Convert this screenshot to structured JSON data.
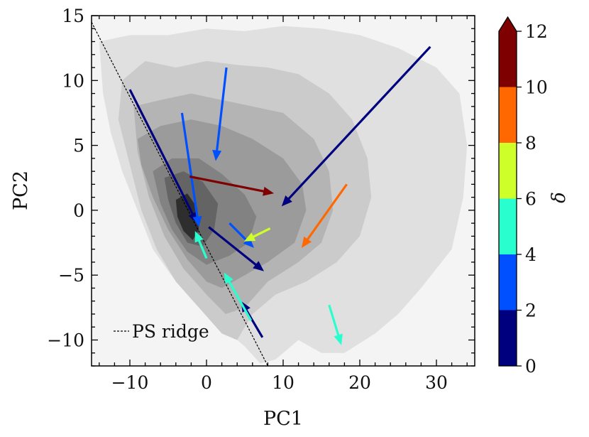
{
  "chart_data": {
    "type": "contour-quiver",
    "xlabel": "PC1",
    "ylabel": "PC2",
    "xlim": [
      -15,
      35
    ],
    "ylim": [
      -12,
      15
    ],
    "xticks": [
      -10,
      0,
      10,
      20,
      30
    ],
    "yticks": [
      -10,
      -5,
      0,
      5,
      10,
      15
    ],
    "xtick_labels": [
      "−10",
      "0",
      "10",
      "20",
      "30"
    ],
    "ytick_labels": [
      "−10",
      "−5",
      "0",
      "5",
      "10",
      "15"
    ],
    "background_color": "#f4f4f4",
    "density_levels": [
      {
        "level": 1,
        "color": "#e0e0e0",
        "polygon": [
          [
            -14,
            13
          ],
          [
            -10,
            13.5
          ],
          [
            -5,
            13.5
          ],
          [
            0,
            14
          ],
          [
            5,
            13.8
          ],
          [
            10,
            14.2
          ],
          [
            15,
            14
          ],
          [
            20,
            13.5
          ],
          [
            25,
            12.5
          ],
          [
            30,
            11
          ],
          [
            33,
            9
          ],
          [
            34,
            5
          ],
          [
            33.5,
            1
          ],
          [
            32,
            -3
          ],
          [
            28,
            -6
          ],
          [
            25,
            -8
          ],
          [
            22,
            -9.5
          ],
          [
            18,
            -11
          ],
          [
            15,
            -11
          ],
          [
            12,
            -10
          ],
          [
            9,
            -11.5
          ],
          [
            7,
            -11.8
          ],
          [
            5,
            -10.5
          ],
          [
            2,
            -9
          ],
          [
            -1,
            -7.5
          ],
          [
            -4,
            -5.5
          ],
          [
            -7,
            -3
          ],
          [
            -9,
            0
          ],
          [
            -11,
            3
          ],
          [
            -12.5,
            6
          ],
          [
            -13.5,
            9
          ]
        ]
      },
      {
        "level": 2,
        "color": "#cbcbcb",
        "polygon": [
          [
            -11,
            10
          ],
          [
            -8,
            11.5
          ],
          [
            -4,
            11
          ],
          [
            0,
            11.5
          ],
          [
            4,
            11.2
          ],
          [
            8,
            11
          ],
          [
            12,
            10.5
          ],
          [
            16,
            9
          ],
          [
            19,
            7
          ],
          [
            21,
            4
          ],
          [
            21.5,
            1
          ],
          [
            20,
            -2
          ],
          [
            17,
            -4
          ],
          [
            13,
            -5.5
          ],
          [
            9,
            -6.5
          ],
          [
            6,
            -8
          ],
          [
            4,
            -10
          ],
          [
            2,
            -9.5
          ],
          [
            -1,
            -7.5
          ],
          [
            -4,
            -5.5
          ],
          [
            -6.5,
            -3
          ],
          [
            -8.5,
            0
          ],
          [
            -10,
            3.5
          ],
          [
            -11.5,
            7
          ]
        ]
      },
      {
        "level": 3,
        "color": "#b4b4b4",
        "polygon": [
          [
            -9.5,
            8
          ],
          [
            -6,
            8.5
          ],
          [
            -2,
            9
          ],
          [
            2,
            8.5
          ],
          [
            6,
            8
          ],
          [
            10,
            7.5
          ],
          [
            14,
            5.5
          ],
          [
            16,
            3
          ],
          [
            16.5,
            0
          ],
          [
            15,
            -2.5
          ],
          [
            12,
            -4
          ],
          [
            8,
            -5.5
          ],
          [
            5,
            -7.5
          ],
          [
            2.5,
            -8
          ],
          [
            0,
            -6.5
          ],
          [
            -3,
            -4.5
          ],
          [
            -5.5,
            -2
          ],
          [
            -7.5,
            1
          ],
          [
            -9,
            4.5
          ]
        ]
      },
      {
        "level": 4,
        "color": "#9b9b9b",
        "polygon": [
          [
            -9,
            5.5
          ],
          [
            -6,
            6.5
          ],
          [
            -2,
            7
          ],
          [
            2,
            6.5
          ],
          [
            6,
            5.5
          ],
          [
            10,
            4
          ],
          [
            12.5,
            2
          ],
          [
            13,
            0
          ],
          [
            11.5,
            -2.5
          ],
          [
            8,
            -4
          ],
          [
            5,
            -5
          ],
          [
            2,
            -6
          ],
          [
            0,
            -5.5
          ],
          [
            -2.5,
            -3.8
          ],
          [
            -5,
            -1.5
          ],
          [
            -7,
            1
          ],
          [
            -8.5,
            3.5
          ]
        ]
      },
      {
        "level": 5,
        "color": "#828282",
        "polygon": [
          [
            -7,
            3
          ],
          [
            -4.5,
            4
          ],
          [
            -1,
            4
          ],
          [
            2,
            2.8
          ],
          [
            5,
            1.2
          ],
          [
            6.5,
            -0.5
          ],
          [
            5.5,
            -2.5
          ],
          [
            3,
            -3.5
          ],
          [
            0,
            -4.2
          ],
          [
            -2.5,
            -3.2
          ],
          [
            -4.5,
            -1.5
          ],
          [
            -6,
            0.5
          ]
        ]
      },
      {
        "level": 6,
        "color": "#646464",
        "polygon": [
          [
            -5.5,
            2.5
          ],
          [
            -3,
            3
          ],
          [
            -0.5,
            2.2
          ],
          [
            1.5,
            0.5
          ],
          [
            1,
            -1.5
          ],
          [
            -0.5,
            -2.8
          ],
          [
            -2.5,
            -2.5
          ],
          [
            -4,
            -1
          ],
          [
            -5,
            0.8
          ]
        ]
      },
      {
        "level": 7,
        "color": "#2e2e2e",
        "polygon": [
          [
            -4,
            0.8
          ],
          [
            -2.5,
            1.3
          ],
          [
            -1.2,
            0.2
          ],
          [
            -1,
            -1.5
          ],
          [
            -1.8,
            -2.3
          ],
          [
            -3,
            -1.6
          ],
          [
            -3.8,
            -0.5
          ]
        ]
      }
    ],
    "ridge": {
      "label": "PS ridge",
      "x": [
        -15,
        8
      ],
      "y": [
        14.5,
        -12
      ]
    },
    "arrows": [
      {
        "x0": 29.2,
        "y0": 12.6,
        "x1": 9.8,
        "y1": 0.3,
        "delta": 1.0
      },
      {
        "x0": -10,
        "y0": 9.3,
        "x1": -1.2,
        "y1": -1.0,
        "delta": 1.0
      },
      {
        "x0": 0.3,
        "y0": -1.3,
        "x1": 7.5,
        "y1": -4.7,
        "delta": 1.0
      },
      {
        "x0": 7.3,
        "y0": -9.8,
        "x1": 4.5,
        "y1": -7.0,
        "delta": 1.0
      },
      {
        "x0": 2.6,
        "y0": 11.0,
        "x1": 1.2,
        "y1": 3.8,
        "delta": 3.0
      },
      {
        "x0": -3.2,
        "y0": 7.5,
        "x1": -1.0,
        "y1": -1.3,
        "delta": 3.0
      },
      {
        "x0": 3.0,
        "y0": -1.0,
        "x1": 6.2,
        "y1": -2.9,
        "delta": 3.0
      },
      {
        "x0": 5.8,
        "y0": -8.5,
        "x1": 2.3,
        "y1": -4.8,
        "delta": 5.0
      },
      {
        "x0": 0.0,
        "y0": -3.7,
        "x1": -1.5,
        "y1": -1.6,
        "delta": 5.0
      },
      {
        "x0": 16.0,
        "y0": -7.3,
        "x1": 17.6,
        "y1": -10.4,
        "delta": 5.0
      },
      {
        "x0": 8.3,
        "y0": -1.4,
        "x1": 4.9,
        "y1": -2.4,
        "delta": 7.0
      },
      {
        "x0": 18.3,
        "y0": 2.0,
        "x1": 12.4,
        "y1": -2.9,
        "delta": 9.0
      },
      {
        "x0": -2.2,
        "y0": 2.6,
        "x1": 8.8,
        "y1": 1.3,
        "delta": 11.0
      }
    ],
    "colorbar": {
      "title": "δ",
      "bounds": [
        0,
        2,
        4,
        6,
        8,
        10,
        12
      ],
      "tick_labels": [
        "0",
        "2",
        "4",
        "6",
        "8",
        "10",
        "12"
      ],
      "colors": [
        "#00007f",
        "#0050ff",
        "#29ffce",
        "#ceff29",
        "#ff6800",
        "#7f0000"
      ],
      "extend": "max"
    },
    "legend": {
      "entries": [
        "PS ridge"
      ],
      "position": "lower-left"
    }
  }
}
